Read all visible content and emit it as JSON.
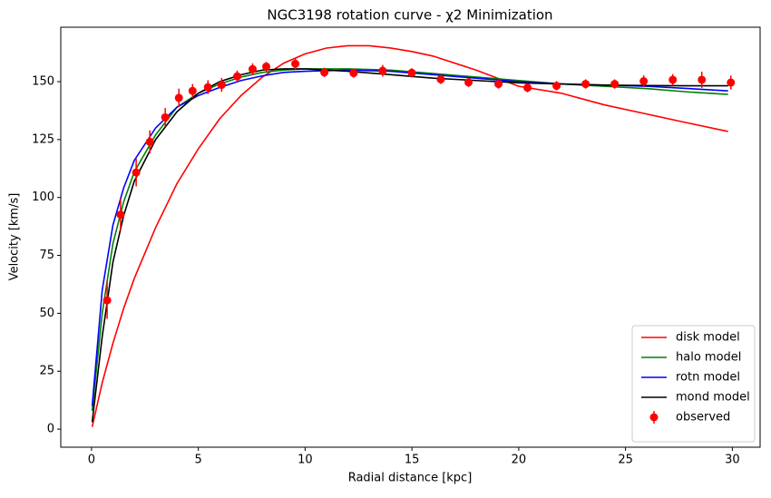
{
  "chart_data": {
    "type": "line",
    "title": "NGC3198 rotation curve - χ2 Minimization",
    "x_label": "Radial distance [kpc]",
    "y_label": "Velocity [km/s]",
    "xlim": [
      -1.44,
      31.3
    ],
    "ylim": [
      -7.8,
      173.5
    ],
    "xticks": [
      0,
      5,
      10,
      15,
      20,
      25,
      30
    ],
    "yticks": [
      0,
      25,
      50,
      75,
      100,
      125,
      150
    ],
    "legend": "lower right",
    "series": [
      {
        "name": "disk model",
        "color": "#ff0000",
        "x": [
          0.03,
          0.5,
          1,
          1.5,
          2,
          3,
          4,
          5,
          6,
          7,
          8,
          9,
          10,
          11,
          12,
          13,
          14,
          15,
          16,
          18,
          20,
          22,
          24,
          26,
          28,
          29.8
        ],
        "values": [
          1,
          20,
          37,
          52,
          65,
          87,
          106,
          121,
          134,
          144,
          152,
          158,
          162,
          164.5,
          165.5,
          165.5,
          164.5,
          163,
          161,
          155,
          148,
          145,
          140,
          136,
          132,
          128.5
        ]
      },
      {
        "name": "halo model",
        "color": "#008000",
        "x": [
          0.03,
          0.5,
          1,
          1.5,
          2,
          3,
          4,
          5,
          6,
          7,
          8,
          9,
          10,
          12,
          14,
          16,
          18,
          20,
          22,
          24,
          26,
          28,
          29.8
        ],
        "values": [
          8,
          50,
          80,
          98,
          111,
          127,
          139,
          145,
          149,
          152,
          154,
          155,
          155.5,
          155.5,
          155,
          153.5,
          152,
          150.5,
          149,
          148,
          147,
          145.5,
          144.5
        ]
      },
      {
        "name": "rotn model",
        "color": "#0000ff",
        "x": [
          0.03,
          0.5,
          1,
          1.5,
          2,
          3,
          4,
          5,
          6,
          7,
          8,
          9,
          10,
          12,
          14,
          16,
          18,
          20,
          22,
          24,
          26,
          28,
          29.8
        ],
        "values": [
          10,
          60,
          88,
          104,
          116,
          130,
          139,
          144,
          147.5,
          150.5,
          152.5,
          154,
          154.5,
          155,
          154.5,
          153,
          151.5,
          150,
          149,
          148.5,
          148,
          147,
          146
        ]
      },
      {
        "name": "mond model",
        "color": "#000000",
        "x": [
          0.03,
          0.5,
          1,
          1.5,
          2,
          3,
          4,
          5,
          6,
          7,
          8,
          9,
          10,
          12,
          14,
          16,
          18,
          20,
          22,
          24,
          26,
          28,
          29.8
        ],
        "values": [
          3,
          40,
          72,
          92,
          107,
          125,
          137,
          145,
          150,
          153,
          155,
          155.5,
          155.5,
          154.5,
          153,
          151.5,
          150.5,
          149.5,
          149,
          148.5,
          148.3,
          148.2,
          148.2
        ]
      },
      {
        "name": "observed",
        "color": "#ff0000",
        "type": "scatter",
        "x": [
          0.73,
          1.36,
          2.09,
          2.73,
          3.45,
          4.09,
          4.73,
          5.45,
          6.09,
          6.82,
          7.54,
          8.18,
          9.54,
          10.9,
          12.27,
          13.63,
          14.99,
          16.35,
          17.65,
          19.05,
          20.41,
          21.77,
          23.13,
          24.49,
          25.85,
          27.21,
          28.57,
          29.93
        ],
        "values": [
          55.6,
          92.6,
          110.8,
          124,
          134.6,
          143,
          146,
          147.6,
          148.6,
          152.3,
          155.4,
          156.5,
          157.7,
          154,
          153.7,
          154.7,
          153.8,
          151,
          149.7,
          149,
          147.4,
          148.2,
          149,
          149,
          150.2,
          150.8,
          150.8,
          149.6
        ],
        "errors": [
          8,
          7,
          6,
          5,
          4,
          4,
          3,
          3,
          3,
          2.5,
          2.5,
          2,
          2.5,
          2,
          2,
          2.5,
          2,
          2,
          2,
          2,
          2,
          2,
          2,
          2,
          2.5,
          2.5,
          3.5,
          3
        ]
      }
    ]
  }
}
